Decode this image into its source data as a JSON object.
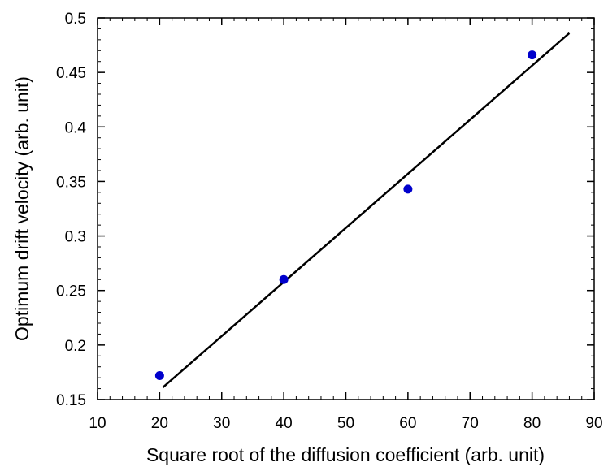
{
  "chart_data": {
    "type": "scatter",
    "title": "",
    "xlabel": "Square root of the diffusion coefficient (arb. unit)",
    "ylabel": "Optimum drift velocity (arb. unit)",
    "xlim": [
      10,
      90
    ],
    "ylim": [
      0.15,
      0.5
    ],
    "x_major_ticks": [
      10,
      20,
      30,
      40,
      50,
      60,
      70,
      80,
      90
    ],
    "x_tick_labels": [
      "10",
      "20",
      "30",
      "40",
      "50",
      "60",
      "70",
      "80",
      "90"
    ],
    "x_minor_step": 2,
    "y_major_ticks": [
      0.15,
      0.2,
      0.25,
      0.3,
      0.35,
      0.4,
      0.45,
      0.5
    ],
    "y_tick_labels": [
      "0.15",
      "0.2",
      "0.25",
      "0.3",
      "0.35",
      "0.4",
      "0.45",
      "0.5"
    ],
    "y_minor_step": 0.01,
    "grid": false,
    "legend": "none",
    "series": [
      {
        "type": "scatter",
        "color": "#0000cc",
        "points": [
          {
            "x": 20,
            "y": 0.172
          },
          {
            "x": 40,
            "y": 0.26
          },
          {
            "x": 60,
            "y": 0.343
          },
          {
            "x": 80,
            "y": 0.466
          }
        ]
      },
      {
        "type": "line",
        "color": "#000000",
        "points": [
          {
            "x": 20.5,
            "y": 0.161
          },
          {
            "x": 86,
            "y": 0.486
          }
        ]
      }
    ]
  }
}
